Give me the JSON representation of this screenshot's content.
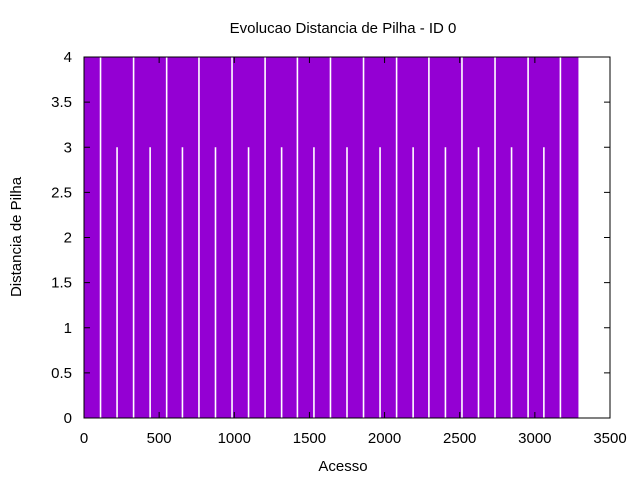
{
  "chart_data": {
    "type": "area",
    "title": "Evolucao Distancia de Pilha - ID 0",
    "xlabel": "Acesso",
    "ylabel": "Distancia de Pilha",
    "xlim": [
      0,
      3500
    ],
    "ylim": [
      0,
      4
    ],
    "x_ticks": [
      "0",
      "500",
      "1000",
      "1500",
      "2000",
      "2500",
      "3000",
      "3500"
    ],
    "y_ticks": [
      "0",
      "0.5",
      "1",
      "1.5",
      "2",
      "2.5",
      "3",
      "3.5",
      "4"
    ],
    "series_color": "#9400d3",
    "legend": "none",
    "grid": false,
    "data_end_x": 3290,
    "gaps": [
      {
        "x": 110,
        "top": 4
      },
      {
        "x": 220,
        "top": 3
      },
      {
        "x": 330,
        "top": 4
      },
      {
        "x": 440,
        "top": 3
      },
      {
        "x": 550,
        "top": 4
      },
      {
        "x": 655,
        "top": 3
      },
      {
        "x": 765,
        "top": 4
      },
      {
        "x": 875,
        "top": 3
      },
      {
        "x": 985,
        "top": 4
      },
      {
        "x": 1095,
        "top": 3
      },
      {
        "x": 1205,
        "top": 4
      },
      {
        "x": 1315,
        "top": 3
      },
      {
        "x": 1420,
        "top": 4
      },
      {
        "x": 1530,
        "top": 3
      },
      {
        "x": 1640,
        "top": 4
      },
      {
        "x": 1750,
        "top": 3
      },
      {
        "x": 1860,
        "top": 4
      },
      {
        "x": 1970,
        "top": 3
      },
      {
        "x": 2080,
        "top": 4
      },
      {
        "x": 2190,
        "top": 3
      },
      {
        "x": 2295,
        "top": 4
      },
      {
        "x": 2405,
        "top": 3
      },
      {
        "x": 2515,
        "top": 4
      },
      {
        "x": 2625,
        "top": 3
      },
      {
        "x": 2735,
        "top": 4
      },
      {
        "x": 2845,
        "top": 3
      },
      {
        "x": 2955,
        "top": 4
      },
      {
        "x": 3060,
        "top": 3
      },
      {
        "x": 3170,
        "top": 4
      }
    ]
  }
}
